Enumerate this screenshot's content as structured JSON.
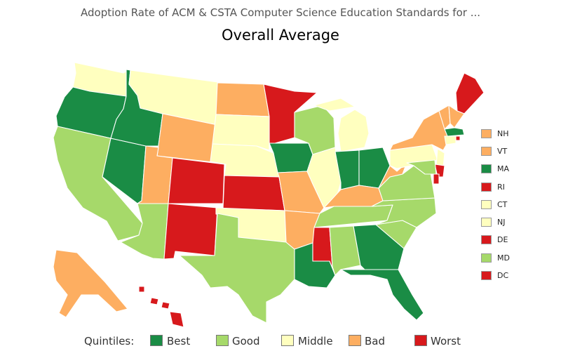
{
  "supertitle": "Adoption Rate of ACM & CSTA Computer Science Education Standards for ...",
  "title": "Overall Average",
  "colors": {
    "best": "#1a8c45",
    "good": "#a6d96a",
    "middle": "#ffffbf",
    "bad": "#fdae61",
    "worst": "#d7191c"
  },
  "legend": {
    "title": "Quintiles:",
    "items": [
      {
        "key": "best",
        "label": "Best"
      },
      {
        "key": "good",
        "label": "Good"
      },
      {
        "key": "middle",
        "label": "Middle"
      },
      {
        "key": "bad",
        "label": "Bad"
      },
      {
        "key": "worst",
        "label": "Worst"
      }
    ]
  },
  "small_states": [
    {
      "abbr": "NH",
      "quintile": "bad"
    },
    {
      "abbr": "VT",
      "quintile": "bad"
    },
    {
      "abbr": "MA",
      "quintile": "best"
    },
    {
      "abbr": "RI",
      "quintile": "worst"
    },
    {
      "abbr": "CT",
      "quintile": "middle"
    },
    {
      "abbr": "NJ",
      "quintile": "middle"
    },
    {
      "abbr": "DE",
      "quintile": "worst"
    },
    {
      "abbr": "MD",
      "quintile": "good"
    },
    {
      "abbr": "DC",
      "quintile": "worst"
    }
  ],
  "states": {
    "WA": "middle",
    "OR": "best",
    "CA": "good",
    "NV": "best",
    "ID": "best",
    "MT": "middle",
    "WY": "bad",
    "UT": "bad",
    "AZ": "good",
    "CO": "worst",
    "NM": "worst",
    "ND": "bad",
    "SD": "middle",
    "NE": "middle",
    "KS": "worst",
    "OK": "middle",
    "TX": "good",
    "MN": "worst",
    "IA": "best",
    "MO": "bad",
    "AR": "bad",
    "LA": "best",
    "WI": "good",
    "IL": "middle",
    "MI": "middle",
    "IN": "best",
    "OH": "best",
    "KY": "bad",
    "TN": "good",
    "MS": "worst",
    "AL": "good",
    "GA": "best",
    "FL": "best",
    "SC": "good",
    "NC": "good",
    "VA": "good",
    "WV": "bad",
    "PA": "middle",
    "NY": "bad",
    "ME": "worst",
    "VT": "bad",
    "NH": "bad",
    "MA": "best",
    "RI": "worst",
    "CT": "middle",
    "NJ": "middle",
    "DE": "worst",
    "MD": "good",
    "DC": "worst",
    "AK": "bad",
    "HI": "worst"
  }
}
